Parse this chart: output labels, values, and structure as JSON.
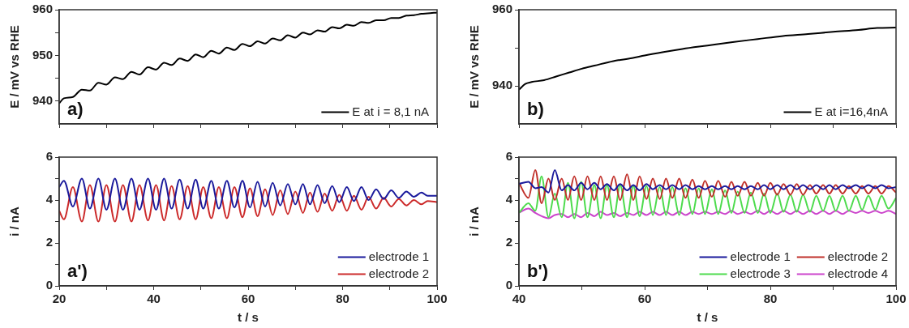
{
  "chart_data": [
    {
      "type": "line",
      "ylabel": "E / mV vs RHE",
      "annotations": [
        "a)"
      ],
      "legend": "bottom right",
      "tick_labels": "y",
      "xlim": [
        20,
        100
      ],
      "xticks": [
        20,
        {
          "value": 30,
          "label": null
        },
        40,
        {
          "value": 50,
          "label": null
        },
        60,
        {
          "value": 70,
          "label": null
        },
        80,
        {
          "value": 90,
          "label": null
        },
        100
      ],
      "ylim": [
        935,
        960
      ],
      "yticks": [
        940,
        {
          "value": 945,
          "label": null
        },
        950,
        {
          "value": 955,
          "label": null
        },
        960
      ],
      "series": [
        {
          "name": "E at i = 8,1 nA",
          "color": "#000000",
          "x": [
            20,
            21.0,
            22.9,
            24.8,
            26.5,
            28.3,
            30.0,
            31.8,
            33.5,
            35.3,
            37.0,
            38.8,
            40.5,
            42.2,
            43.8,
            45.5,
            47.2,
            48.9,
            50.5,
            52.2,
            53.8,
            55.5,
            57.1,
            58.8,
            60.4,
            62.0,
            63.6,
            65.2,
            66.8,
            68.4,
            70.0,
            71.6,
            73.1,
            74.7,
            76.2,
            77.8,
            79.3,
            80.9,
            82.4,
            84.0,
            85.5,
            87.1,
            88.7,
            90.3,
            91.9,
            93.5,
            95.1,
            96.7,
            98.0,
            100
          ],
          "values": [
            939.5,
            940.6,
            940.9,
            942.5,
            942.3,
            944.0,
            943.6,
            945.2,
            944.8,
            946.4,
            945.8,
            947.4,
            946.9,
            948.4,
            947.9,
            949.3,
            948.8,
            950.2,
            949.6,
            951.0,
            950.4,
            951.7,
            951.2,
            952.5,
            952.0,
            953.1,
            952.6,
            953.7,
            953.3,
            954.4,
            953.9,
            955.0,
            954.6,
            955.5,
            955.2,
            956.2,
            955.9,
            956.7,
            956.5,
            957.3,
            957.1,
            957.7,
            957.7,
            958.2,
            958.2,
            958.7,
            958.8,
            959.1,
            959.2,
            959.4
          ]
        }
      ]
    },
    {
      "type": "line",
      "xlabel": "t / s",
      "ylabel": "i / nA",
      "annotations": [
        "a')"
      ],
      "legend": "bottom right",
      "xlim": [
        20,
        100
      ],
      "xticks": [
        20,
        {
          "value": 30,
          "label": null
        },
        40,
        {
          "value": 50,
          "label": null
        },
        60,
        {
          "value": 70,
          "label": null
        },
        80,
        {
          "value": 90,
          "label": null
        },
        100
      ],
      "ylim": [
        0,
        6
      ],
      "yticks": [
        0,
        {
          "value": 1,
          "label": null
        },
        2,
        {
          "value": 3,
          "label": null
        },
        4,
        {
          "value": 5,
          "label": null
        },
        6
      ],
      "x": [
        20,
        21.0,
        22.9,
        24.8,
        26.5,
        28.3,
        30.0,
        31.8,
        33.5,
        35.3,
        37.0,
        38.8,
        40.5,
        42.2,
        43.8,
        45.5,
        47.2,
        48.9,
        50.5,
        52.2,
        53.8,
        55.5,
        57.1,
        58.8,
        60.4,
        62.0,
        63.6,
        65.2,
        66.8,
        68.4,
        70.0,
        71.6,
        73.1,
        74.7,
        76.2,
        77.8,
        79.3,
        80.9,
        82.4,
        84.0,
        85.5,
        87.1,
        88.7,
        90.3,
        91.9,
        93.5,
        95.1,
        96.7,
        98.0,
        100
      ],
      "series": [
        {
          "name": "electrode 1",
          "color": "#1a1a9c",
          "values": [
            4.6,
            4.9,
            3.7,
            5.0,
            3.6,
            5.0,
            3.55,
            5.0,
            3.55,
            5.0,
            3.55,
            5.0,
            3.55,
            5.0,
            3.6,
            4.95,
            3.6,
            4.95,
            3.6,
            4.9,
            3.6,
            4.9,
            3.65,
            4.9,
            3.65,
            4.85,
            3.7,
            4.8,
            3.75,
            4.75,
            3.8,
            4.75,
            3.8,
            4.7,
            3.85,
            4.65,
            3.9,
            4.6,
            3.95,
            4.6,
            4.0,
            4.5,
            4.05,
            4.45,
            4.1,
            4.4,
            4.15,
            4.35,
            4.2,
            4.2
          ]
        },
        {
          "name": "electrode 2",
          "color": "#cc2a2a",
          "values": [
            3.5,
            3.1,
            4.6,
            3.0,
            4.7,
            3.0,
            4.7,
            3.0,
            4.7,
            3.0,
            4.7,
            3.05,
            4.7,
            3.05,
            4.65,
            3.1,
            4.65,
            3.1,
            4.6,
            3.15,
            4.6,
            3.15,
            4.6,
            3.2,
            4.55,
            3.25,
            4.5,
            3.3,
            4.45,
            3.35,
            4.4,
            3.4,
            4.35,
            3.45,
            4.3,
            3.5,
            4.25,
            3.5,
            4.2,
            3.55,
            4.15,
            3.6,
            4.1,
            3.7,
            4.05,
            3.75,
            4.0,
            3.8,
            3.95,
            3.9
          ]
        }
      ]
    },
    {
      "type": "line",
      "ylabel": "E / mV vs RHE",
      "annotations": [
        "b)"
      ],
      "legend": "bottom right",
      "tick_labels": "y",
      "xlim": [
        40,
        100
      ],
      "xticks": [
        40,
        {
          "value": 50,
          "label": null
        },
        60,
        {
          "value": 70,
          "label": null
        },
        80,
        {
          "value": 90,
          "label": null
        },
        100
      ],
      "ylim": [
        930,
        960
      ],
      "yticks": [
        940,
        {
          "value": 950,
          "label": null
        },
        960
      ],
      "series": [
        {
          "name": "E at i=16,4nA",
          "color": "#000000",
          "x": [
            40,
            41,
            42,
            44,
            46,
            48,
            50,
            52,
            55,
            58,
            60,
            63,
            66,
            70,
            74,
            78,
            82,
            86,
            90,
            94,
            97,
            100
          ],
          "values": [
            939,
            940.5,
            941,
            941.5,
            942.5,
            943.5,
            944.5,
            945.3,
            946.5,
            947.3,
            948,
            948.9,
            949.7,
            950.6,
            951.5,
            952.3,
            953.1,
            953.6,
            954.2,
            954.7,
            955.2,
            955.3
          ]
        }
      ]
    },
    {
      "type": "line",
      "xlabel": "t / s",
      "ylabel": "i / nA",
      "annotations": [
        "b')"
      ],
      "legend": "bottom right",
      "xlim": [
        40,
        100
      ],
      "xticks": [
        40,
        {
          "value": 50,
          "label": null
        },
        60,
        {
          "value": 70,
          "label": null
        },
        80,
        {
          "value": 90,
          "label": null
        },
        100
      ],
      "ylim": [
        0,
        6
      ],
      "yticks": [
        0,
        {
          "value": 1,
          "label": null
        },
        2,
        {
          "value": 3,
          "label": null
        },
        4,
        {
          "value": 5,
          "label": null
        },
        6
      ],
      "x": [
        40,
        41.5,
        42.6,
        43.6,
        44.7,
        45.7,
        46.8,
        47.8,
        48.8,
        49.9,
        50.9,
        52.0,
        53.0,
        54.0,
        55.1,
        56.1,
        57.2,
        58.2,
        59.2,
        60.3,
        61.3,
        62.4,
        63.4,
        64.4,
        65.5,
        66.5,
        67.6,
        68.6,
        69.6,
        70.7,
        71.7,
        72.8,
        73.8,
        74.8,
        75.9,
        76.9,
        78.0,
        79.0,
        80.0,
        81.1,
        82.1,
        83.2,
        84.2,
        85.2,
        86.3,
        87.3,
        88.4,
        89.4,
        90.4,
        91.5,
        92.5,
        93.6,
        94.6,
        95.6,
        96.7,
        97.7,
        98.8,
        100
      ],
      "series": [
        {
          "name": "electrode 1",
          "color": "#1a1a9c",
          "values": [
            4.75,
            4.85,
            4.55,
            4.6,
            4.35,
            5.4,
            4.45,
            4.7,
            4.45,
            4.8,
            4.5,
            4.8,
            4.5,
            4.75,
            4.45,
            4.75,
            4.45,
            4.7,
            4.45,
            4.75,
            4.5,
            4.7,
            4.5,
            4.7,
            4.5,
            4.7,
            4.5,
            4.65,
            4.5,
            4.65,
            4.5,
            4.65,
            4.5,
            4.65,
            4.5,
            4.65,
            4.5,
            4.7,
            4.5,
            4.7,
            4.5,
            4.7,
            4.5,
            4.7,
            4.5,
            4.7,
            4.5,
            4.7,
            4.5,
            4.7,
            4.55,
            4.7,
            4.55,
            4.7,
            4.55,
            4.7,
            4.55,
            4.6
          ]
        },
        {
          "name": "electrode 2",
          "color": "#c0302a",
          "values": [
            4.8,
            4.1,
            5.4,
            3.85,
            5.0,
            4.0,
            5.0,
            4.0,
            5.1,
            4.0,
            5.1,
            4.0,
            5.1,
            4.0,
            5.1,
            4.0,
            5.2,
            4.0,
            5.1,
            4.05,
            5.0,
            4.05,
            5.0,
            4.1,
            5.0,
            4.1,
            4.95,
            4.1,
            4.9,
            4.15,
            4.9,
            4.15,
            4.85,
            4.2,
            4.85,
            4.2,
            4.8,
            4.2,
            4.8,
            4.25,
            4.75,
            4.25,
            4.75,
            4.25,
            4.7,
            4.3,
            4.7,
            4.3,
            4.7,
            4.3,
            4.65,
            4.3,
            4.65,
            4.3,
            4.65,
            4.3,
            4.65,
            4.35
          ]
        },
        {
          "name": "electrode 3",
          "color": "#4ddb4d",
          "values": [
            3.4,
            3.85,
            3.5,
            5.1,
            3.2,
            4.3,
            3.2,
            4.8,
            3.15,
            4.85,
            3.2,
            4.7,
            3.15,
            4.7,
            3.2,
            4.7,
            3.2,
            4.65,
            3.25,
            4.65,
            3.3,
            4.6,
            3.3,
            4.6,
            3.3,
            4.55,
            3.35,
            4.55,
            3.35,
            4.5,
            3.35,
            4.45,
            3.4,
            4.4,
            3.4,
            4.35,
            3.4,
            4.3,
            3.4,
            4.3,
            3.45,
            4.25,
            3.45,
            4.25,
            3.45,
            4.2,
            3.5,
            4.2,
            3.5,
            4.2,
            3.5,
            4.2,
            3.55,
            4.2,
            3.55,
            4.2,
            3.6,
            4.1
          ]
        },
        {
          "name": "electrode 4",
          "color": "#cc44cc",
          "values": [
            3.4,
            3.6,
            3.4,
            3.25,
            3.15,
            3.3,
            3.35,
            3.2,
            3.35,
            3.2,
            3.4,
            3.25,
            3.45,
            3.3,
            3.4,
            3.25,
            3.4,
            3.3,
            3.45,
            3.3,
            3.45,
            3.3,
            3.45,
            3.3,
            3.45,
            3.3,
            3.45,
            3.35,
            3.45,
            3.35,
            3.45,
            3.35,
            3.5,
            3.35,
            3.45,
            3.35,
            3.5,
            3.35,
            3.5,
            3.35,
            3.5,
            3.35,
            3.5,
            3.35,
            3.5,
            3.35,
            3.5,
            3.35,
            3.5,
            3.35,
            3.5,
            3.4,
            3.5,
            3.4,
            3.5,
            3.4,
            3.5,
            3.35
          ]
        }
      ]
    }
  ]
}
